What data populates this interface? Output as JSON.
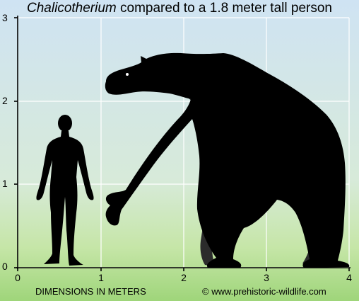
{
  "title": {
    "species": "Chalicotherium",
    "rest": " compared to a 1.8 meter tall person"
  },
  "y_ticks": [
    "3",
    "2",
    "1",
    "0"
  ],
  "x_ticks": [
    "0",
    "1",
    "2",
    "3",
    "4"
  ],
  "footer": {
    "axis_caption": "DIMENSIONS IN METERS",
    "credit": "© www.prehistoric-wildlife.com"
  },
  "colors": {
    "sky": "#cfe3f3",
    "ground": "#9fd57a",
    "grid": "#ffffff",
    "silhouette": "#000000",
    "far_limbs": "#2b2b2b"
  }
}
